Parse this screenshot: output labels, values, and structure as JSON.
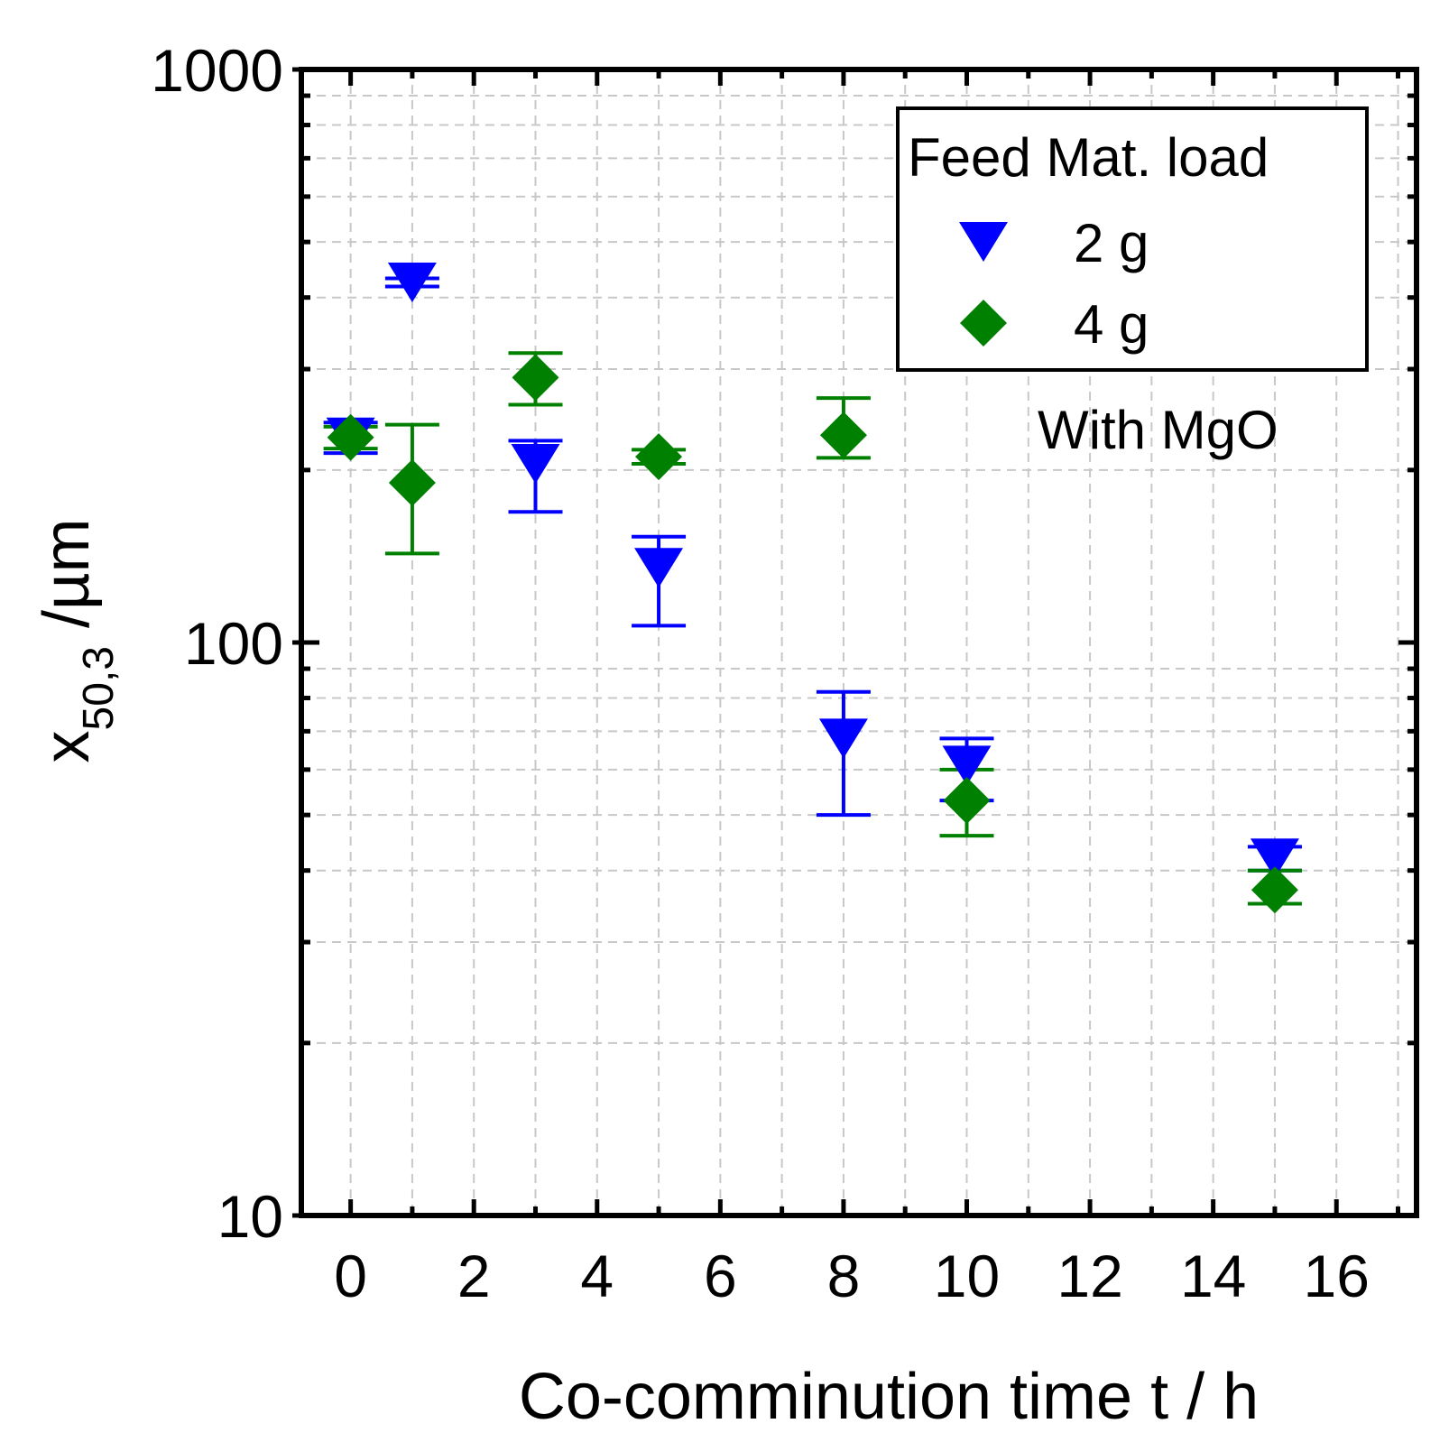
{
  "chart_data": {
    "type": "scatter",
    "title": "",
    "xlabel": "Co-comminution time t / h",
    "ylabel": {
      "main": "x",
      "subscript": "50,3",
      "unit": " /µm"
    },
    "xlim": [
      -0.8,
      17.3
    ],
    "ylim": [
      10,
      1000
    ],
    "yscale": "log",
    "grid": true,
    "x_ticks": [
      "0",
      "2",
      "4",
      "6",
      "8",
      "10",
      "12",
      "14",
      "16"
    ],
    "y_ticks": [
      "10",
      "100",
      "1000"
    ],
    "legend": {
      "title": "Feed Mat. load",
      "placement": "top-right"
    },
    "annotation": "With MgO",
    "series": [
      {
        "name": "2 g",
        "marker": "triangle-down",
        "color": "#0000ff",
        "points": [
          {
            "x": 0,
            "y": 228,
            "err_low": 214,
            "err_high": 242
          },
          {
            "x": 1,
            "y": 425,
            "err_low": 418,
            "err_high": 432
          },
          {
            "x": 3,
            "y": 205,
            "err_low": 169,
            "err_high": 225
          },
          {
            "x": 5,
            "y": 135,
            "err_low": 107,
            "err_high": 153
          },
          {
            "x": 8,
            "y": 68,
            "err_low": 50,
            "err_high": 82
          },
          {
            "x": 10,
            "y": 61,
            "err_low": 53,
            "err_high": 68
          },
          {
            "x": 15,
            "y": 42,
            "err_low": 40,
            "err_high": 44
          }
        ]
      },
      {
        "name": "4 g",
        "marker": "diamond",
        "color": "#008000",
        "points": [
          {
            "x": 0,
            "y": 228,
            "err_low": 218,
            "err_high": 238
          },
          {
            "x": 1,
            "y": 190,
            "err_low": 143,
            "err_high": 240
          },
          {
            "x": 3,
            "y": 290,
            "err_low": 260,
            "err_high": 320
          },
          {
            "x": 5,
            "y": 211,
            "err_low": 205,
            "err_high": 217
          },
          {
            "x": 8,
            "y": 230,
            "err_low": 210,
            "err_high": 267
          },
          {
            "x": 10,
            "y": 53,
            "err_low": 46,
            "err_high": 60
          },
          {
            "x": 15,
            "y": 37,
            "err_low": 35,
            "err_high": 40
          }
        ]
      }
    ]
  }
}
